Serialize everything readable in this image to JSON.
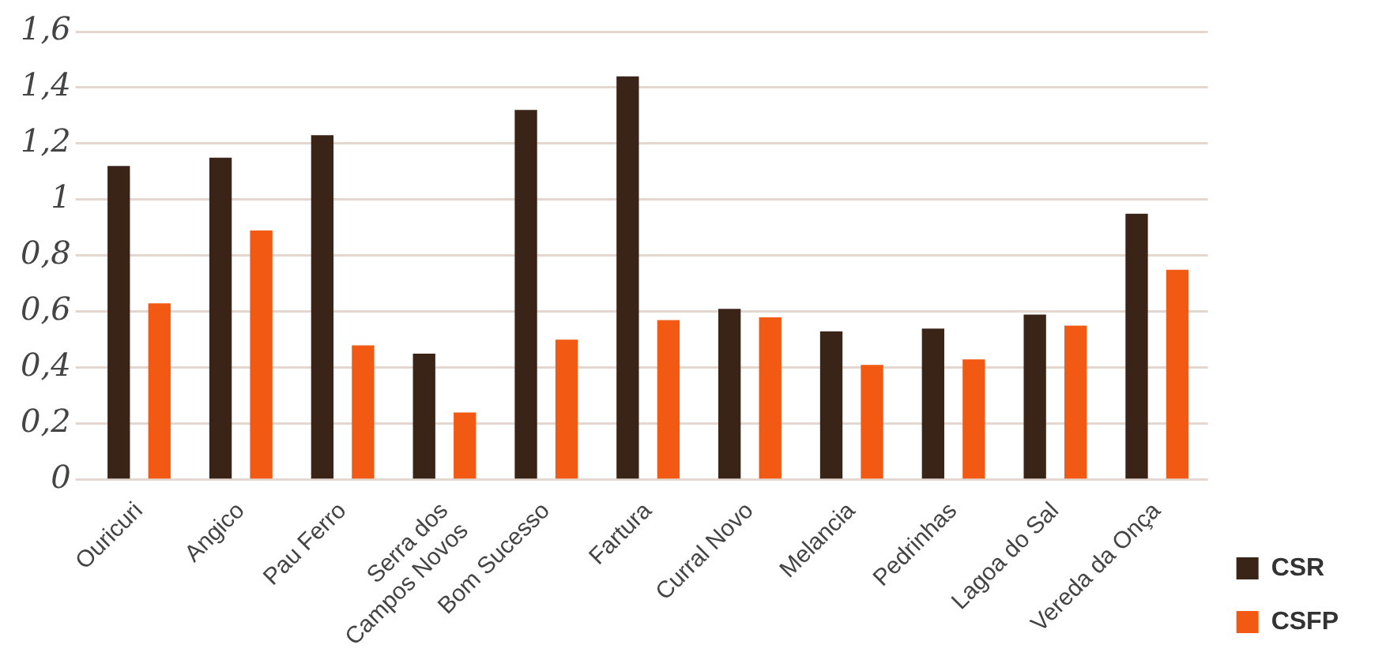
{
  "chart_data": {
    "type": "bar",
    "categories": [
      "Ouricuri",
      "Angico",
      "Pau Ferro",
      "Serra dos Campos Novos",
      "Bom Sucesso",
      "Fartura",
      "Curral Novo",
      "Melancia",
      "Pedrinhas",
      "Lagoa do Sal",
      "Vereda da Onça"
    ],
    "series": [
      {
        "name": "CSR",
        "color": "#3a2418",
        "values": [
          1.12,
          1.15,
          1.23,
          0.45,
          1.32,
          1.44,
          0.61,
          0.53,
          0.54,
          0.59,
          0.95
        ]
      },
      {
        "name": "CSFP",
        "color": "#f25a14",
        "values": [
          0.63,
          0.89,
          0.48,
          0.24,
          0.5,
          0.57,
          0.58,
          0.41,
          0.43,
          0.55,
          0.75
        ]
      }
    ],
    "ylim": [
      0,
      1.6
    ],
    "yticks": [
      0,
      {
        "value": 0.2,
        "label": "0,2"
      },
      {
        "value": 0.4,
        "label": "0,4"
      },
      {
        "value": 0.6,
        "label": "0,6"
      },
      {
        "value": 0.8,
        "label": "0,8"
      },
      1,
      {
        "value": 1.2,
        "label": "1,2"
      },
      {
        "value": 1.4,
        "label": "1,4"
      },
      {
        "value": 1.6,
        "label": "1,6"
      }
    ],
    "grid": "y",
    "legend": "right"
  }
}
